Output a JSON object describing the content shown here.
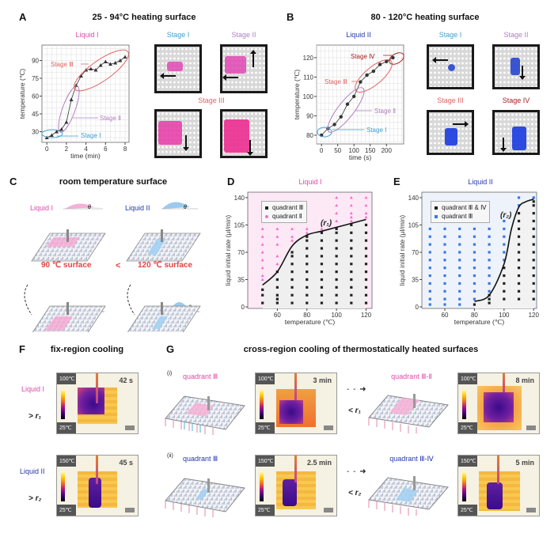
{
  "colors": {
    "liquid_I": "#e048a8",
    "liquid_II": "#2536b0",
    "stage_I": "#3ea0d0",
    "stage_II": "#b27ec2",
    "stage_III": "#e06464",
    "stage_IV": "#a82020",
    "quadrant_III_dots": "#222222",
    "quadrant_II_dots": "#f070c8",
    "quadrant_III_blue_dots": "#3a78e0"
  },
  "panel_A": {
    "letter": "A",
    "title": "25 - 94°C heating surface",
    "liquid": "Liquid I",
    "photo_stage_I": "Stage I",
    "photo_stage_II": "Stage II",
    "photo_stage_III": "Stage III"
  },
  "panel_B": {
    "letter": "B",
    "title": "80 - 120°C heating surface",
    "liquid": "Liquid II",
    "photo_stage_I": "Stage I",
    "photo_stage_II": "Stage II",
    "photo_stage_III": "Stage III",
    "photo_stage_IV": "Stage IV"
  },
  "panel_C": {
    "letter": "C",
    "title": "room temperature surface",
    "liquid_I": "Liquid I",
    "liquid_II": "Liquid II",
    "theta": "θ",
    "surface_90": "90 ℃ surface",
    "less_than": "<",
    "surface_120": "120 ℃ surface"
  },
  "panel_D": {
    "letter": "D",
    "liquid": "Liquid I",
    "curve_label": "(r₁)",
    "legend": [
      "quadrant Ⅲ",
      "quadrant Ⅱ"
    ]
  },
  "panel_E": {
    "letter": "E",
    "liquid": "Liquid II",
    "curve_label": "(r₂)",
    "legend": [
      "quadrant Ⅲ & Ⅳ",
      "quadrant Ⅲ"
    ]
  },
  "panel_F": {
    "letter": "F",
    "title": "fix-region cooling",
    "rows": [
      {
        "liquid": "Liquid I",
        "condition": "> r₁",
        "tmax": "100℃",
        "tmin": "25℃",
        "time": "42 s"
      },
      {
        "liquid": "Liquid II",
        "condition": "> r₂",
        "tmax": "150℃",
        "tmin": "25℃",
        "time": "45 s"
      }
    ]
  },
  "panel_G": {
    "letter": "G",
    "title": "cross-region cooling of thermostatically heated surfaces",
    "rows": [
      {
        "index": "(i)",
        "start_label": "quadrant Ⅲ",
        "tmax": "100℃",
        "tmin": "25℃",
        "time_1": "3 min",
        "condition": "< r₁",
        "end_label": "quadrant Ⅲ-Ⅱ",
        "time_2": "8 min"
      },
      {
        "index": "(ii)",
        "start_label": "quadrant Ⅲ",
        "tmax": "150℃",
        "tmin": "25℃",
        "time_1": "2.5 min",
        "condition": "< r₂",
        "end_label": "quadrant Ⅲ-Ⅳ",
        "time_2": "5 min"
      }
    ]
  },
  "chart_data": [
    {
      "type": "line",
      "panel": "A",
      "title": "Liquid I",
      "xlabel": "time (min)",
      "ylabel": "temperature (℃)",
      "xlim": [
        -0.5,
        8.4
      ],
      "ylim": [
        21,
        103
      ],
      "xticks": [
        0,
        2,
        4,
        6,
        8
      ],
      "yticks": [
        30,
        45,
        60,
        75,
        90
      ],
      "grid": true,
      "marker": "triangle",
      "x": [
        0,
        0.5,
        1,
        1.5,
        2,
        2.5,
        3,
        3.5,
        4,
        4.5,
        5,
        5.5,
        6,
        6.5,
        7,
        7.5,
        8
      ],
      "y": [
        25,
        27,
        30,
        32,
        38,
        57,
        69,
        77,
        82,
        83,
        82,
        86,
        89,
        87,
        88,
        90,
        93
      ],
      "annotations": [
        "Stage Ⅰ",
        "Stage Ⅱ",
        "Stage Ⅲ"
      ]
    },
    {
      "type": "line",
      "panel": "B",
      "title": "Liquid II",
      "xlabel": "time (s)",
      "ylabel": "temperature (℃)",
      "xlim": [
        -15,
        253
      ],
      "ylim": [
        75.5,
        126.5
      ],
      "xticks": [
        0,
        50,
        100,
        150,
        200
      ],
      "yticks": [
        80,
        90,
        100,
        110,
        120
      ],
      "grid": true,
      "marker": "circle",
      "x": [
        0,
        20,
        40,
        60,
        80,
        100,
        120,
        140,
        160,
        180,
        200,
        220
      ],
      "y": [
        80,
        83.5,
        85.5,
        89.5,
        96,
        100,
        107.5,
        111,
        113,
        116.5,
        118,
        120
      ],
      "annotations": [
        "Stage Ⅰ",
        "Stage Ⅱ",
        "Stage Ⅲ",
        "Stage Ⅳ"
      ]
    },
    {
      "type": "scatter",
      "panel": "D",
      "title": "Liquid I",
      "xlabel": "temperature (℃)",
      "ylabel": "liquid initial rate (μl/min)",
      "xlim": [
        40,
        124
      ],
      "ylim": [
        -2,
        147
      ],
      "xticks": [
        60,
        80,
        100,
        120
      ],
      "yticks": [
        0,
        35,
        70,
        105,
        140
      ],
      "legend_position": "top-left",
      "series": [
        {
          "name": "quadrant Ⅲ",
          "points": {
            "50": [
              5,
              15,
              22
            ],
            "60": [
              5,
              10,
              15,
              25,
              35,
              45
            ],
            "70": [
              5,
              15,
              25,
              35,
              45,
              55,
              65,
              70
            ],
            "80": [
              5,
              15,
              25,
              35,
              45,
              55,
              65,
              75,
              85,
              90
            ],
            "90": [
              5,
              15,
              25,
              35,
              45,
              55,
              65,
              75,
              85,
              95
            ],
            "100": [
              5,
              15,
              25,
              35,
              45,
              55,
              65,
              75,
              85,
              95,
              100
            ],
            "110": [
              5,
              15,
              25,
              35,
              45,
              55,
              65,
              75,
              85,
              95,
              105
            ],
            "120": [
              5,
              15,
              25,
              35,
              45,
              55,
              65,
              75,
              85,
              95,
              105
            ]
          }
        },
        {
          "name": "quadrant Ⅱ",
          "points": {
            "50": [
              35,
              40,
              50,
              60,
              70,
              80,
              90,
              100
            ],
            "60": [
              55,
              65,
              80,
              90,
              100
            ],
            "70": [
              85,
              90,
              100
            ],
            "80": [
              95,
              100
            ],
            "90": [
              100
            ],
            "100": [
              110,
              120,
              130,
              140
            ],
            "110": [
              110,
              115,
              120,
              130,
              140
            ],
            "120": [
              115,
              120,
              130,
              140
            ]
          }
        }
      ],
      "curve": {
        "name": "r1",
        "x": [
          50,
          60,
          70,
          80,
          90,
          100,
          110,
          120
        ],
        "y": [
          28,
          45,
          78,
          92,
          97,
          102,
          107,
          112
        ]
      }
    },
    {
      "type": "scatter",
      "panel": "E",
      "title": "Liquid II",
      "xlabel": "temperature (℃)",
      "ylabel": "liquid initial rate (μl/min)",
      "xlim": [
        44.5,
        122
      ],
      "ylim": [
        -2,
        147
      ],
      "xticks": [
        60,
        80,
        100,
        120
      ],
      "yticks": [
        0,
        35,
        70,
        105,
        140
      ],
      "legend_position": "top-left",
      "series": [
        {
          "name": "quadrant Ⅲ & Ⅳ",
          "points": {
            "80": [
              3
            ],
            "90": [
              5,
              10,
              15
            ],
            "100": [
              10,
              20,
              30,
              40,
              50
            ],
            "110": [
              10,
              20,
              30,
              40,
              50,
              60,
              70,
              80,
              90,
              100,
              110,
              120
            ],
            "120": [
              10,
              20,
              30,
              40,
              50,
              60,
              70,
              80,
              90,
              100,
              110,
              120,
              130,
              135
            ]
          }
        },
        {
          "name": "quadrant Ⅲ",
          "points": {
            "50": [
              3,
              10,
              20,
              30,
              40,
              50,
              60,
              70,
              80,
              90,
              100
            ],
            "60": [
              3,
              10,
              20,
              30,
              40,
              50,
              60,
              70,
              80,
              90,
              100
            ],
            "70": [
              3,
              10,
              20,
              30,
              40,
              50,
              60,
              70,
              80,
              90,
              100
            ],
            "80": [
              10,
              20,
              30,
              40,
              50,
              60,
              70,
              80,
              90,
              100
            ],
            "90": [
              20,
              30,
              40,
              50,
              60,
              70,
              80,
              90,
              100
            ],
            "100": [
              60,
              70,
              80,
              90,
              100,
              110
            ],
            "110": [
              130,
              140
            ],
            "120": [
              140
            ]
          }
        }
      ],
      "curve": {
        "name": "r2",
        "x": [
          80,
          90,
          100,
          105,
          110,
          115,
          120
        ],
        "y": [
          7,
          15,
          55,
          100,
          128,
          135,
          138
        ]
      }
    }
  ]
}
